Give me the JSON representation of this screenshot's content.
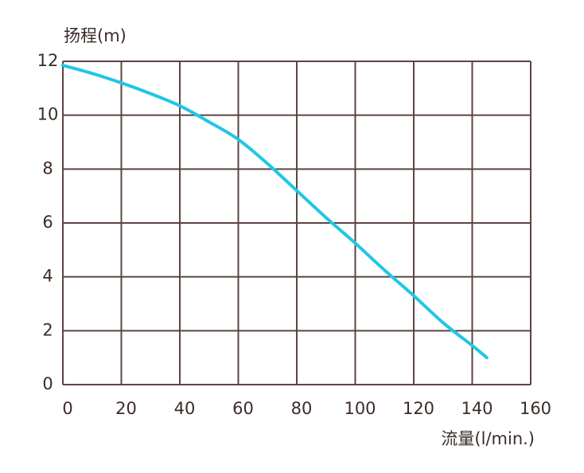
{
  "chart_data": {
    "type": "line",
    "y_title": "扬程(m)",
    "x_title": "流量(l/min.)",
    "x": [
      0,
      10,
      20,
      30,
      40,
      50,
      60,
      70,
      80,
      90,
      100,
      110,
      120,
      130,
      140,
      145
    ],
    "values": [
      11.85,
      11.55,
      11.2,
      10.8,
      10.35,
      9.75,
      9.1,
      8.2,
      7.2,
      6.2,
      5.25,
      4.25,
      3.3,
      2.3,
      1.45,
      1.0
    ],
    "color": "#22c6e6",
    "xlim": [
      0,
      160
    ],
    "xticks": [
      0,
      20,
      40,
      60,
      80,
      100,
      120,
      140,
      160
    ],
    "ylim": [
      0,
      12
    ],
    "yticks": [
      0,
      2,
      4,
      6,
      8,
      10,
      12
    ],
    "grid": true,
    "grid_color": "#5b4540"
  }
}
